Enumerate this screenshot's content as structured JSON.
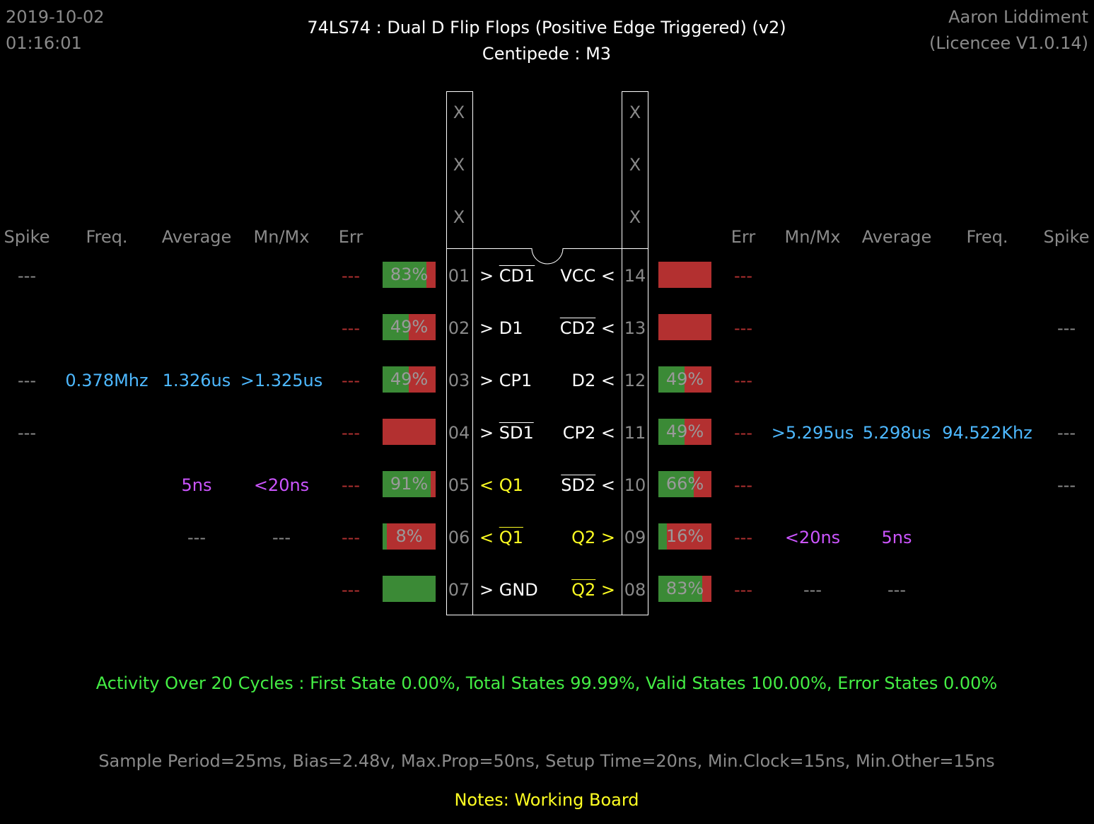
{
  "header": {
    "date": "2019-10-02",
    "time": "01:16:01",
    "title": "74LS74  :  Dual D Flip Flops (Positive Edge Triggered) (v2)",
    "subtitle": "Centipede : M3",
    "author": "Aaron Liddiment",
    "licence": "(Licencee V1.0.14)"
  },
  "columns": {
    "left": [
      "Spike",
      "Freq.",
      "Average",
      "Mn/Mx",
      "Err"
    ],
    "right": [
      "Err",
      "Mn/Mx",
      "Average",
      "Freq.",
      "Spike"
    ]
  },
  "top_marks": {
    "left": [
      "X",
      "X",
      "X"
    ],
    "right": [
      "X",
      "X",
      "X"
    ]
  },
  "left_pins": [
    {
      "num": "01",
      "dir": ">",
      "name": "CD1",
      "overline": true,
      "name_color": "white",
      "bar_green": 83,
      "bar_label": "83%",
      "err": "---",
      "spike": "---",
      "freq": "",
      "average": "",
      "mnmx": ""
    },
    {
      "num": "02",
      "dir": ">",
      "name": "D1",
      "overline": false,
      "name_color": "white",
      "bar_green": 49,
      "bar_label": "49%",
      "err": "---",
      "spike": "",
      "freq": "",
      "average": "",
      "mnmx": ""
    },
    {
      "num": "03",
      "dir": ">",
      "name": "CP1",
      "overline": false,
      "name_color": "white",
      "bar_green": 49,
      "bar_label": "49%",
      "err": "---",
      "spike": "---",
      "freq": "0.378Mhz",
      "average": "1.326us",
      "mnmx": ">1.325us"
    },
    {
      "num": "04",
      "dir": ">",
      "name": "SD1",
      "overline": true,
      "name_color": "white",
      "bar_green": 0,
      "bar_label": "",
      "err": "---",
      "spike": "---",
      "freq": "",
      "average": "",
      "mnmx": ""
    },
    {
      "num": "05",
      "dir": "<",
      "name": "Q1",
      "overline": false,
      "name_color": "yellow",
      "bar_green": 91,
      "bar_label": "91%",
      "err": "---",
      "spike": "",
      "freq": "",
      "average": "5ns",
      "mnmx": "<20ns"
    },
    {
      "num": "06",
      "dir": "<",
      "name": "Q1",
      "overline": true,
      "name_color": "yellow",
      "bar_green": 8,
      "bar_label": "8%",
      "err": "---",
      "spike": "",
      "freq": "",
      "average": "---",
      "mnmx": "---"
    },
    {
      "num": "07",
      "dir": ">",
      "name": "GND",
      "overline": false,
      "name_color": "white",
      "bar_green": 100,
      "bar_label": "",
      "err": "---",
      "spike": "",
      "freq": "",
      "average": "",
      "mnmx": ""
    }
  ],
  "right_pins": [
    {
      "num": "14",
      "dir": "<",
      "name": "VCC",
      "overline": false,
      "name_color": "white",
      "bar_green": 0,
      "bar_label": "",
      "err": "---",
      "mnmx": "",
      "average": "",
      "freq": "",
      "spike": ""
    },
    {
      "num": "13",
      "dir": "<",
      "name": "CD2",
      "overline": true,
      "name_color": "white",
      "bar_green": 0,
      "bar_label": "",
      "err": "---",
      "mnmx": "",
      "average": "",
      "freq": "",
      "spike": "---"
    },
    {
      "num": "12",
      "dir": "<",
      "name": "D2",
      "overline": false,
      "name_color": "white",
      "bar_green": 49,
      "bar_label": "49%",
      "err": "---",
      "mnmx": "",
      "average": "",
      "freq": "",
      "spike": ""
    },
    {
      "num": "11",
      "dir": "<",
      "name": "CP2",
      "overline": false,
      "name_color": "white",
      "bar_green": 49,
      "bar_label": "49%",
      "err": "---",
      "mnmx": ">5.295us",
      "average": "5.298us",
      "freq": "94.522Khz",
      "spike": "---"
    },
    {
      "num": "10",
      "dir": "<",
      "name": "SD2",
      "overline": true,
      "name_color": "white",
      "bar_green": 66,
      "bar_label": "66%",
      "err": "---",
      "mnmx": "",
      "average": "",
      "freq": "",
      "spike": "---"
    },
    {
      "num": "09",
      "dir": ">",
      "name": "Q2",
      "overline": false,
      "name_color": "yellow",
      "bar_green": 16,
      "bar_label": "16%",
      "err": "---",
      "mnmx": "<20ns",
      "average": "5ns",
      "freq": "",
      "spike": ""
    },
    {
      "num": "08",
      "dir": ">",
      "name": "Q2",
      "overline": true,
      "name_color": "yellow",
      "bar_green": 83,
      "bar_label": "83%",
      "err": "---",
      "mnmx": "---",
      "average": "---",
      "freq": "",
      "spike": ""
    }
  ],
  "footer": {
    "activity": "Activity Over 20 Cycles  :  First State 0.00%,  Total States 99.99%,  Valid States 100.00%,  Error States 0.00%",
    "sample": "Sample Period=25ms,  Bias=2.48v,  Max.Prop=50ns,  Setup Time=20ns,  Min.Clock=15ns,  Min.Other=15ns",
    "notes": "Notes:  Working Board"
  },
  "colors": {
    "bar_green": "#3b8a36",
    "bar_red": "#b33030",
    "value_blue": "#4db8ff",
    "value_purple": "#cc55ff",
    "output_yellow": "#ffff22",
    "activity_green": "#44ee44"
  }
}
